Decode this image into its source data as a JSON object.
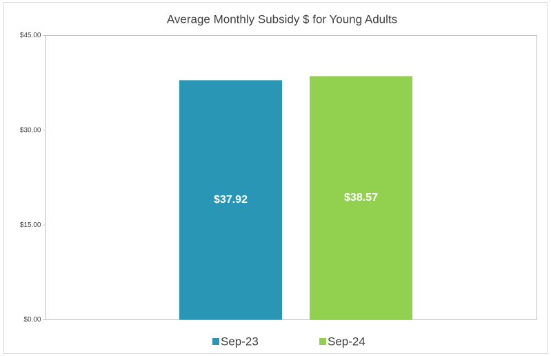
{
  "chart_data": {
    "type": "bar",
    "title": "Average Monthly Subsidy $ for Young Adults",
    "categories": [
      null
    ],
    "series": [
      {
        "name": "Sep-23",
        "color": "#2896b4",
        "values": [
          37.92
        ],
        "value_labels": [
          "$37.92"
        ]
      },
      {
        "name": "Sep-24",
        "color": "#92d050",
        "values": [
          38.57
        ],
        "value_labels": [
          "$38.57"
        ]
      }
    ],
    "ylim": [
      0,
      45
    ],
    "yticks": [
      {
        "value": 0,
        "label": "$0.00"
      },
      {
        "value": 15,
        "label": "$15.00"
      },
      {
        "value": 30,
        "label": "$30.00"
      },
      {
        "value": 45,
        "label": "$45.00"
      }
    ],
    "legend": "bottom"
  }
}
